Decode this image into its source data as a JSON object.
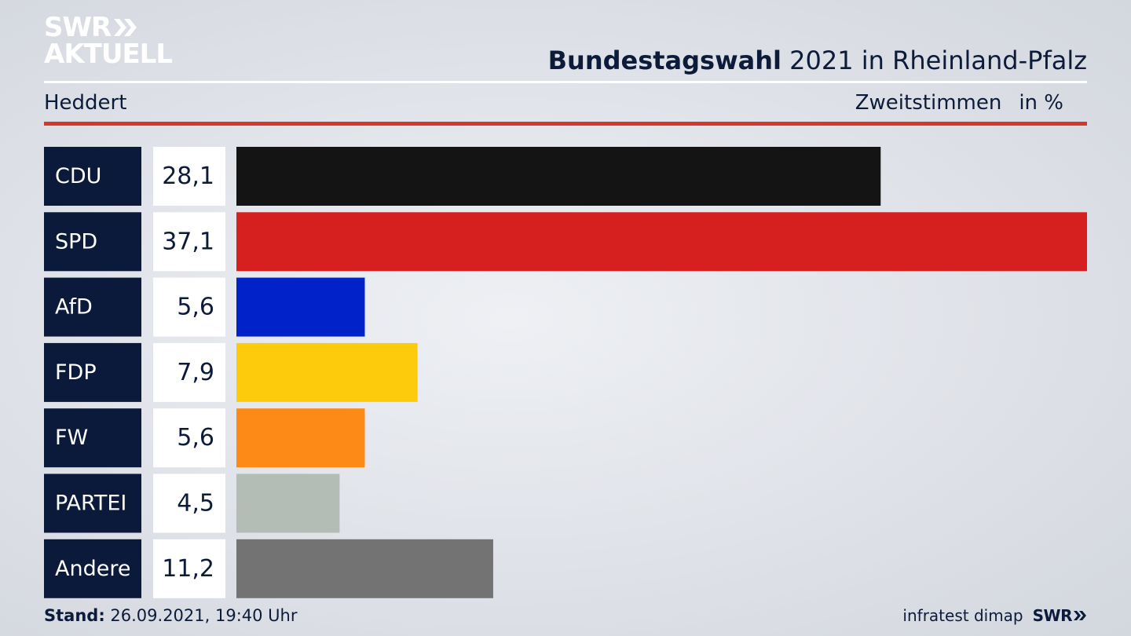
{
  "logo": {
    "line1": "SWR",
    "line2": "AKTUELL",
    "icon": "double-chevron-right-icon",
    "color": "#ffffff"
  },
  "header": {
    "title_strong": "Bundestagswahl",
    "title_rest": " 2021 in Rheinland-Pfalz",
    "district": "Heddert",
    "metric": "Zweitstimmen",
    "unit": "in %"
  },
  "footer": {
    "stand_label": "Stand:",
    "stand_value": " 26.09.2021, 19:40 Uhr",
    "source": "infratest dimap",
    "source_logo": "SWR"
  },
  "colors": {
    "accent_red_rule": "#d3382c",
    "party_box": "#0b1a3a"
  },
  "chart_data": {
    "type": "bar",
    "orientation": "horizontal",
    "categories": [
      "CDU",
      "SPD",
      "AfD",
      "FDP",
      "FW",
      "PARTEI",
      "Andere"
    ],
    "values": [
      28.1,
      37.1,
      5.6,
      7.9,
      5.6,
      4.5,
      11.2
    ],
    "value_labels": [
      "28,1",
      "37,1",
      "5,6",
      "7,9",
      "5,6",
      "4,5",
      "11,2"
    ],
    "colors": [
      "#141414",
      "#d62020",
      "#0022c8",
      "#fdcb0c",
      "#fd8a17",
      "#b4bcb6",
      "#737373"
    ],
    "xlim": [
      0,
      37.1
    ],
    "grid": false,
    "legend": "none"
  }
}
